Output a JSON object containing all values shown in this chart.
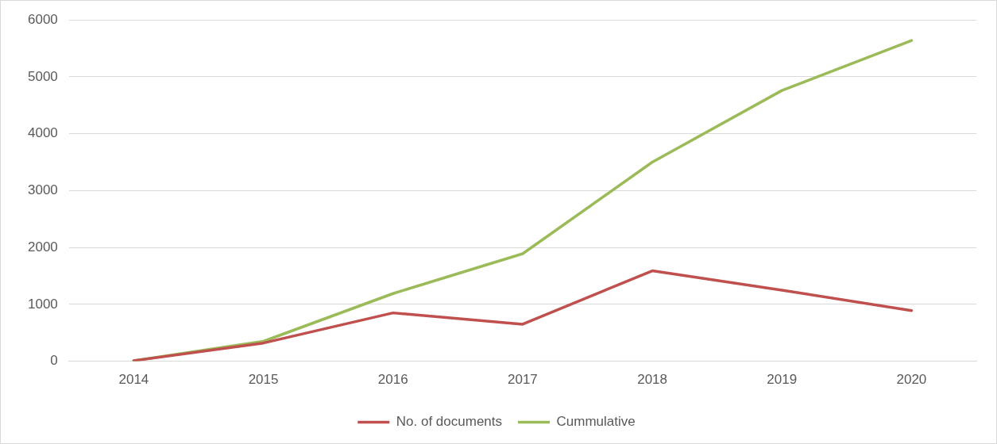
{
  "chart_data": {
    "type": "line",
    "categories": [
      "2014",
      "2015",
      "2016",
      "2017",
      "2018",
      "2019",
      "2020"
    ],
    "series": [
      {
        "name": "No. of documents",
        "color": "#c0504d",
        "values": [
          10,
          320,
          850,
          650,
          1590,
          1250,
          890
        ]
      },
      {
        "name": "Cummulative",
        "color": "#9bbb59",
        "values": [
          10,
          350,
          1190,
          1890,
          3500,
          4760,
          5640
        ]
      }
    ],
    "ylim": [
      0,
      6000
    ],
    "yticks": [
      0,
      1000,
      2000,
      3000,
      4000,
      5000,
      6000
    ],
    "grid": "y",
    "legend": "bottom",
    "marker": "none",
    "line_style": "solid"
  }
}
